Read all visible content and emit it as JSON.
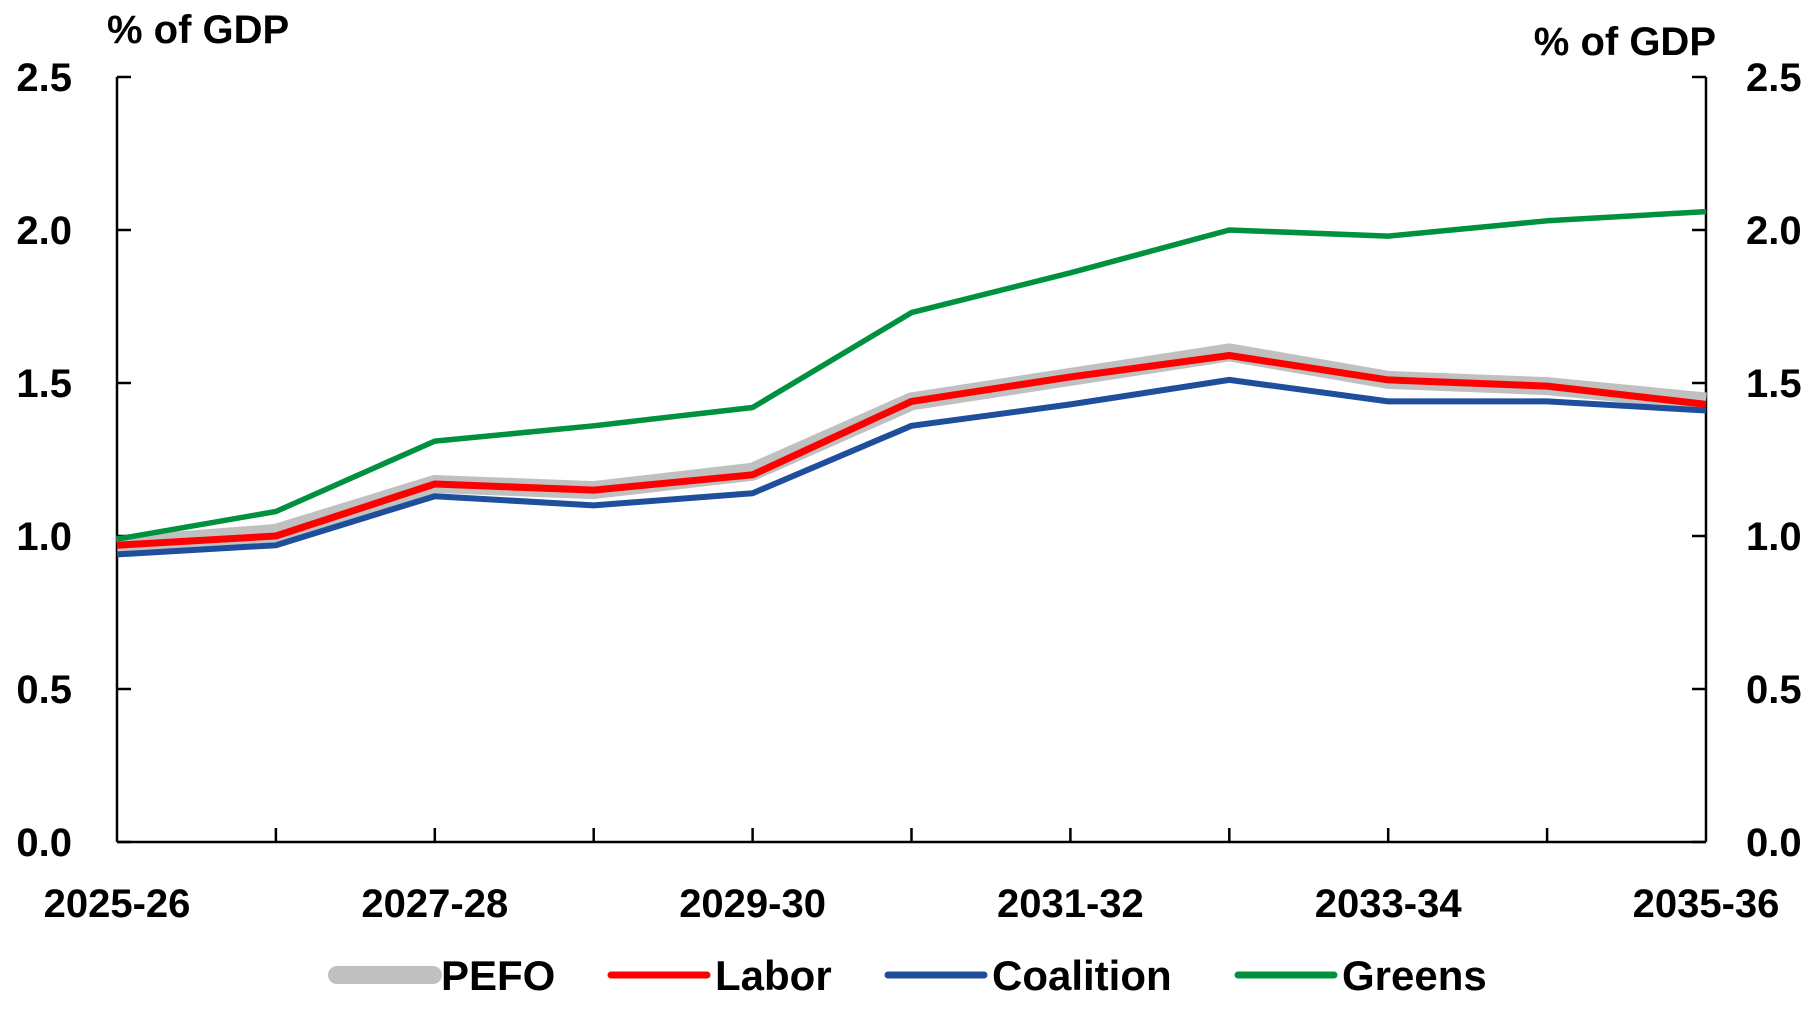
{
  "chart_data": {
    "type": "line",
    "title": "",
    "y_unit_left": "% of GDP",
    "y_unit_right": "% of GDP",
    "ylim": [
      0,
      2.5
    ],
    "y_ticks": [
      "0.0",
      "0.5",
      "1.0",
      "1.5",
      "2.0",
      "2.5"
    ],
    "categories": [
      "2025-26",
      "2026-27",
      "2027-28",
      "2028-29",
      "2029-30",
      "2030-31",
      "2031-32",
      "2032-33",
      "2033-34",
      "2034-35",
      "2035-36"
    ],
    "x_tick_labels": [
      "2025-26",
      "2027-28",
      "2029-30",
      "2031-32",
      "2033-34",
      "2035-36"
    ],
    "legend_position": "bottom",
    "grid": false,
    "series": [
      {
        "name": "PEFO",
        "color": "#c0c0c0",
        "values": [
          0.97,
          1.01,
          1.17,
          1.15,
          1.21,
          1.44,
          1.52,
          1.6,
          1.51,
          1.49,
          1.44
        ]
      },
      {
        "name": "Labor",
        "color": "#ff0000",
        "values": [
          0.97,
          1.0,
          1.17,
          1.15,
          1.2,
          1.44,
          1.52,
          1.59,
          1.51,
          1.49,
          1.43
        ]
      },
      {
        "name": "Coalition",
        "color": "#1f4e9c",
        "values": [
          0.94,
          0.97,
          1.13,
          1.1,
          1.14,
          1.36,
          1.43,
          1.51,
          1.44,
          1.44,
          1.41
        ]
      },
      {
        "name": "Greens",
        "color": "#00913f",
        "values": [
          0.99,
          1.08,
          1.31,
          1.36,
          1.42,
          1.73,
          1.86,
          2.0,
          1.98,
          2.03,
          2.06
        ]
      }
    ]
  }
}
